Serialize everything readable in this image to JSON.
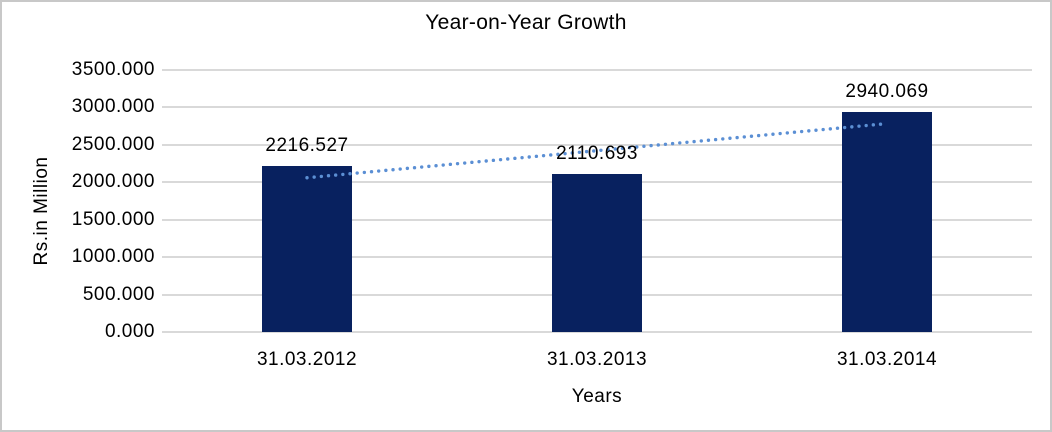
{
  "chart_data": {
    "type": "bar",
    "title": "Year-on-Year Growth",
    "xlabel": "Years",
    "ylabel": "Rs.in Million",
    "categories": [
      "31.03.2012",
      "31.03.2013",
      "31.03.2014"
    ],
    "values": [
      2216.527,
      2110.693,
      2940.069
    ],
    "data_labels": [
      "2216.527",
      "2110.693",
      "2940.069"
    ],
    "ylim": [
      0,
      3500
    ],
    "yticks": [
      "0.000",
      "500.000",
      "1000.000",
      "1500.000",
      "2000.000",
      "2500.000",
      "3000.000",
      "3500.000"
    ],
    "grid": true,
    "legend": "none",
    "trendline": {
      "type": "linear",
      "style": "dotted"
    },
    "colors": {
      "bar_fill": "#08215f",
      "trendline": "#5b8fd4",
      "gridline": "#d9d9d9",
      "text": "#000000",
      "frame_border": "#c8c8c8",
      "background": "#ffffff"
    }
  }
}
